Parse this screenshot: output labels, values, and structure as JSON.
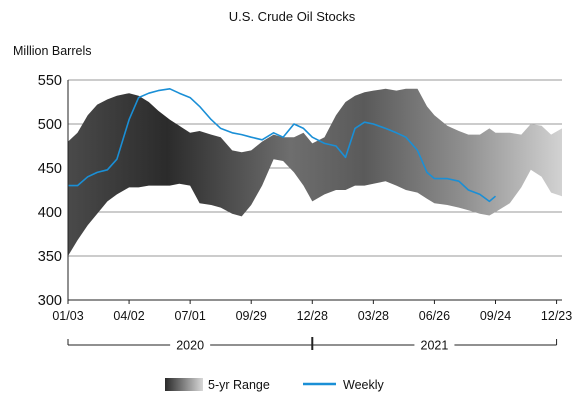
{
  "chart_data": {
    "type": "area",
    "title": "U.S. Crude Oil Stocks",
    "ylabel": "Million Barrels",
    "xlabel": "",
    "ylim": [
      300,
      550
    ],
    "yticks": [
      300,
      350,
      400,
      450,
      500,
      550
    ],
    "grid": "horizontal",
    "legend_position": "bottom",
    "xlim": [
      "2020-01-03",
      "2021-12-31"
    ],
    "xticks": [
      {
        "date": "2020-01-03",
        "label": "01/03"
      },
      {
        "date": "2020-04-02",
        "label": "04/02"
      },
      {
        "date": "2020-07-01",
        "label": "07/01"
      },
      {
        "date": "2020-09-29",
        "label": "09/29"
      },
      {
        "date": "2020-12-28",
        "label": "12/28"
      },
      {
        "date": "2021-03-28",
        "label": "03/28"
      },
      {
        "date": "2021-06-26",
        "label": "06/26"
      },
      {
        "date": "2021-09-24",
        "label": "09/24"
      },
      {
        "date": "2021-12-23",
        "label": "12/23"
      }
    ],
    "year_brackets": [
      {
        "label": "2020",
        "start": "2020-01-03",
        "end": "2020-12-28"
      },
      {
        "label": "2021",
        "start": "2020-12-28",
        "end": "2021-12-23"
      }
    ],
    "legend": [
      {
        "label": "5-yr Range",
        "kind": "gradient-band"
      },
      {
        "label": "Weekly",
        "kind": "line",
        "color": "#1a8fd6"
      }
    ],
    "range_band": {
      "name": "5-yr Range",
      "x": [
        "2020-01-03",
        "2020-01-17",
        "2020-02-01",
        "2020-02-15",
        "2020-03-01",
        "2020-03-15",
        "2020-04-02",
        "2020-04-16",
        "2020-05-01",
        "2020-05-15",
        "2020-06-01",
        "2020-06-15",
        "2020-07-01",
        "2020-07-15",
        "2020-08-01",
        "2020-08-15",
        "2020-09-01",
        "2020-09-15",
        "2020-09-29",
        "2020-10-15",
        "2020-11-01",
        "2020-11-15",
        "2020-12-01",
        "2020-12-15",
        "2020-12-28",
        "2021-01-15",
        "2021-02-01",
        "2021-02-15",
        "2021-03-01",
        "2021-03-15",
        "2021-03-28",
        "2021-04-15",
        "2021-05-01",
        "2021-05-15",
        "2021-06-01",
        "2021-06-15",
        "2021-06-26",
        "2021-07-15",
        "2021-08-01",
        "2021-08-15",
        "2021-09-01",
        "2021-09-15",
        "2021-09-24",
        "2021-10-15",
        "2021-11-01",
        "2021-11-15",
        "2021-12-01",
        "2021-12-15",
        "2021-12-31"
      ],
      "high": [
        480,
        490,
        510,
        522,
        528,
        532,
        535,
        532,
        525,
        515,
        505,
        498,
        490,
        492,
        488,
        485,
        470,
        468,
        470,
        480,
        488,
        485,
        485,
        490,
        478,
        485,
        510,
        525,
        532,
        536,
        538,
        540,
        538,
        540,
        540,
        520,
        510,
        498,
        492,
        488,
        488,
        495,
        490,
        490,
        488,
        500,
        498,
        488,
        495
      ],
      "low": [
        350,
        368,
        385,
        398,
        412,
        420,
        428,
        428,
        430,
        430,
        430,
        432,
        430,
        410,
        408,
        405,
        398,
        395,
        408,
        430,
        460,
        458,
        445,
        430,
        412,
        420,
        425,
        425,
        430,
        430,
        432,
        435,
        430,
        425,
        422,
        415,
        410,
        408,
        405,
        402,
        398,
        396,
        400,
        410,
        428,
        448,
        440,
        422,
        418
      ]
    },
    "series": [
      {
        "name": "Weekly",
        "color": "#1a8fd6",
        "x": [
          "2020-01-03",
          "2020-01-17",
          "2020-02-01",
          "2020-02-15",
          "2020-03-01",
          "2020-03-15",
          "2020-04-02",
          "2020-04-16",
          "2020-05-01",
          "2020-05-15",
          "2020-06-01",
          "2020-06-15",
          "2020-07-01",
          "2020-07-15",
          "2020-08-01",
          "2020-08-15",
          "2020-09-01",
          "2020-09-15",
          "2020-09-29",
          "2020-10-15",
          "2020-11-01",
          "2020-11-15",
          "2020-12-01",
          "2020-12-15",
          "2020-12-28",
          "2021-01-15",
          "2021-02-01",
          "2021-02-15",
          "2021-03-01",
          "2021-03-15",
          "2021-03-28",
          "2021-04-15",
          "2021-05-01",
          "2021-05-15",
          "2021-06-01",
          "2021-06-15",
          "2021-06-26",
          "2021-07-15",
          "2021-08-01",
          "2021-08-15",
          "2021-09-01",
          "2021-09-15",
          "2021-09-24"
        ],
        "values": [
          430,
          430,
          440,
          445,
          448,
          460,
          505,
          530,
          535,
          538,
          540,
          535,
          530,
          520,
          505,
          495,
          490,
          488,
          485,
          482,
          490,
          485,
          500,
          495,
          485,
          478,
          475,
          462,
          495,
          502,
          500,
          495,
          490,
          485,
          470,
          445,
          438,
          438,
          435,
          425,
          420,
          412,
          418
        ]
      }
    ]
  }
}
